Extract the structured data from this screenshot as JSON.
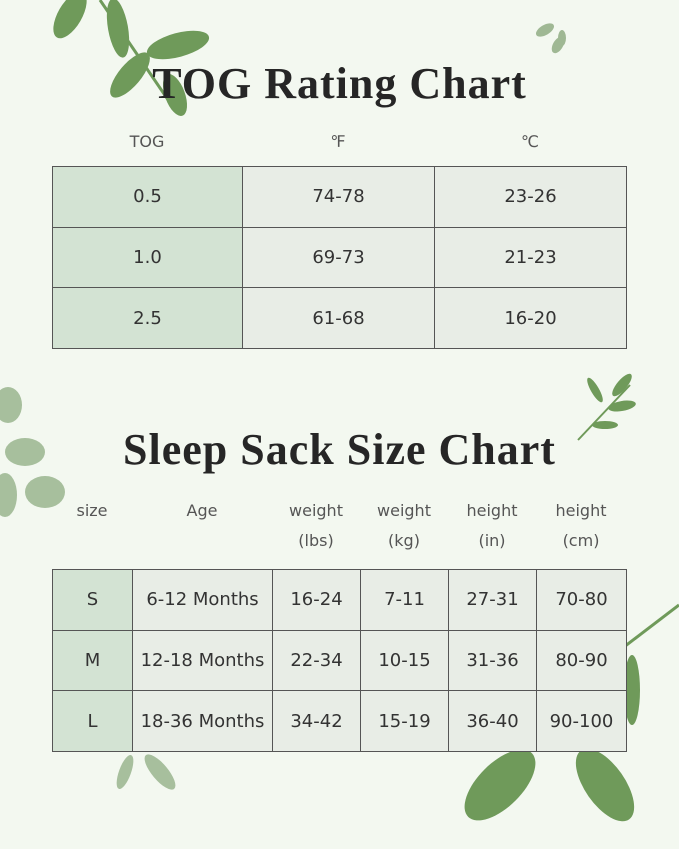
{
  "tog": {
    "title": "TOG Rating Chart",
    "headers": [
      "TOG",
      "℉",
      "℃"
    ],
    "rows": [
      [
        "0.5",
        "74-78",
        "23-26"
      ],
      [
        "1.0",
        "69-73",
        "21-23"
      ],
      [
        "2.5",
        "61-68",
        "16-20"
      ]
    ]
  },
  "size": {
    "title": "Sleep Sack Size Chart",
    "headers": [
      [
        "size"
      ],
      [
        "Age"
      ],
      [
        "weight",
        "(lbs)"
      ],
      [
        "weight",
        "(kg)"
      ],
      [
        "height",
        "(in)"
      ],
      [
        "height",
        "(cm)"
      ]
    ],
    "rows": [
      [
        "S",
        "6-12 Months",
        "16-24",
        "7-11",
        "27-31",
        "70-80"
      ],
      [
        "M",
        "12-18 Months",
        "22-34",
        "10-15",
        "31-36",
        "80-90"
      ],
      [
        "L",
        "18-36 Months",
        "34-42",
        "15-19",
        "36-40",
        "90-100"
      ]
    ]
  }
}
